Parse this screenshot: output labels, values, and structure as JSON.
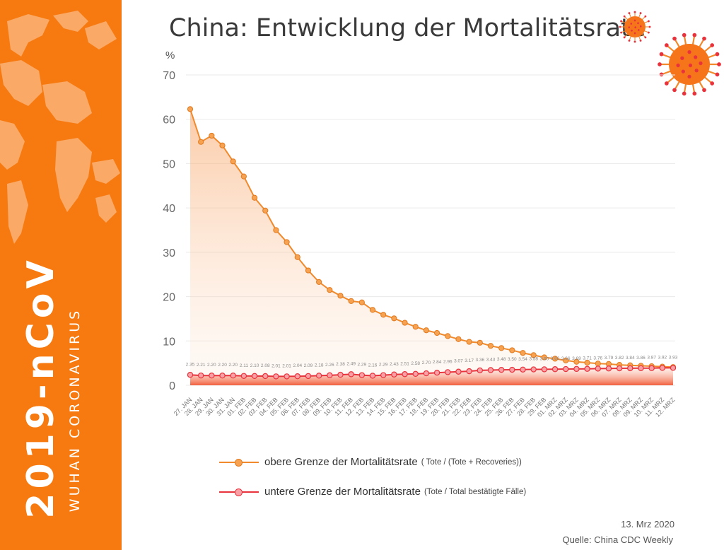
{
  "sidebar": {
    "title": "2019-nCoV",
    "subtitle": "WUHAN CORONAVIRUS"
  },
  "header": {
    "title": "China: Entwicklung der Mortalitätsrate"
  },
  "footer": {
    "date": "13. Mrz 2020",
    "source": "Quelle: China CDC Weekly"
  },
  "colors": {
    "orange": "#f77a10",
    "upper_line": "#f08a2c",
    "lower_line": "#e8333c",
    "lower_fill": "#f8b0b4"
  },
  "icons": [
    "world-map-icon",
    "virus-icon"
  ],
  "legend": [
    {
      "label": "obere Grenze der Mortalitätsrate",
      "detail": "( Tote / (Tote + Recoveries))"
    },
    {
      "label": "untere Grenze der Mortalitätsrate",
      "detail": "(Tote / Total bestätigte Fälle)"
    }
  ],
  "chart_data": {
    "type": "line",
    "ylabel": "%",
    "ylim": [
      0,
      70
    ],
    "yticks": [
      0,
      10,
      20,
      30,
      40,
      50,
      60,
      70
    ],
    "grid": true,
    "legend_position": "bottom",
    "categories": [
      "27. JAN",
      "28. JAN",
      "29. JAN",
      "30. JAN",
      "31. JAN",
      "01. FEB",
      "02. FEB",
      "03. FEB",
      "04. FEB",
      "05. FEB",
      "06. FEB",
      "07. FEB",
      "08. FEB",
      "09. FEB",
      "10. FEB",
      "11. FEB",
      "12. FEB",
      "13. FEB",
      "14. FEB",
      "15. FEB",
      "16. FEB",
      "17. FEB",
      "18. FEB",
      "19. FEB",
      "20. FEB",
      "21. FEB",
      "22. FEB",
      "23. FEB",
      "24. FEB",
      "25. FEB",
      "26. FEB",
      "27. FEB",
      "28. FEB",
      "29. FEB",
      "01. MRZ",
      "02. MRZ",
      "03. MRZ",
      "04. MRZ",
      "05. MRZ",
      "06. MRZ",
      "07. MRZ",
      "08. MRZ",
      "09. MRZ",
      "10. MRZ",
      "11. MRZ",
      "12. MRZ"
    ],
    "series": [
      {
        "name": "obere Grenze der Mortalitätsrate",
        "values": [
          62.3,
          54.9,
          56.3,
          54.1,
          50.5,
          47.1,
          42.3,
          39.4,
          35.0,
          32.3,
          28.9,
          25.9,
          23.3,
          21.5,
          20.2,
          19.0,
          18.7,
          17.0,
          15.9,
          15.1,
          14.1,
          13.2,
          12.4,
          11.8,
          11.1,
          10.4,
          9.8,
          9.6,
          8.9,
          8.4,
          7.9,
          7.3,
          6.8,
          6.3,
          6.0,
          5.6,
          5.3,
          5.1,
          4.9,
          4.8,
          4.6,
          4.5,
          4.4,
          4.3,
          4.2,
          4.1
        ]
      },
      {
        "name": "untere Grenze der Mortalitätsrate",
        "values": [
          2.35,
          2.21,
          2.2,
          2.2,
          2.2,
          2.11,
          2.1,
          2.08,
          2.01,
          2.01,
          2.04,
          2.09,
          2.18,
          2.26,
          2.38,
          2.49,
          2.29,
          2.16,
          2.29,
          2.43,
          2.51,
          2.58,
          2.7,
          2.84,
          2.96,
          3.07,
          3.17,
          3.36,
          3.43,
          3.48,
          3.5,
          3.54,
          3.58,
          3.6,
          3.63,
          3.66,
          3.69,
          3.71,
          3.76,
          3.79,
          3.82,
          3.84,
          3.86,
          3.87,
          3.92,
          3.93
        ],
        "labels": [
          "2.35",
          "2.21",
          "2.20",
          "2.20",
          "2.20",
          "2.11",
          "2.10",
          "2.08",
          "2.01",
          "2.01",
          "2.04",
          "2.09",
          "2.18",
          "2.26",
          "2.38",
          "2.49",
          "2.29",
          "2.16",
          "2.29",
          "2.43",
          "2.51",
          "2.58",
          "2.70",
          "2.84",
          "2.96",
          "3.07",
          "3.17",
          "3.36",
          "3.43",
          "3.48",
          "3.50",
          "3.54",
          "3.58",
          "3.60",
          "3.63",
          "3.66",
          "3.69",
          "3.71",
          "3.76",
          "3.79",
          "3.82",
          "3.84",
          "3.86",
          "3.87",
          "3.92",
          "3.93"
        ]
      }
    ]
  }
}
